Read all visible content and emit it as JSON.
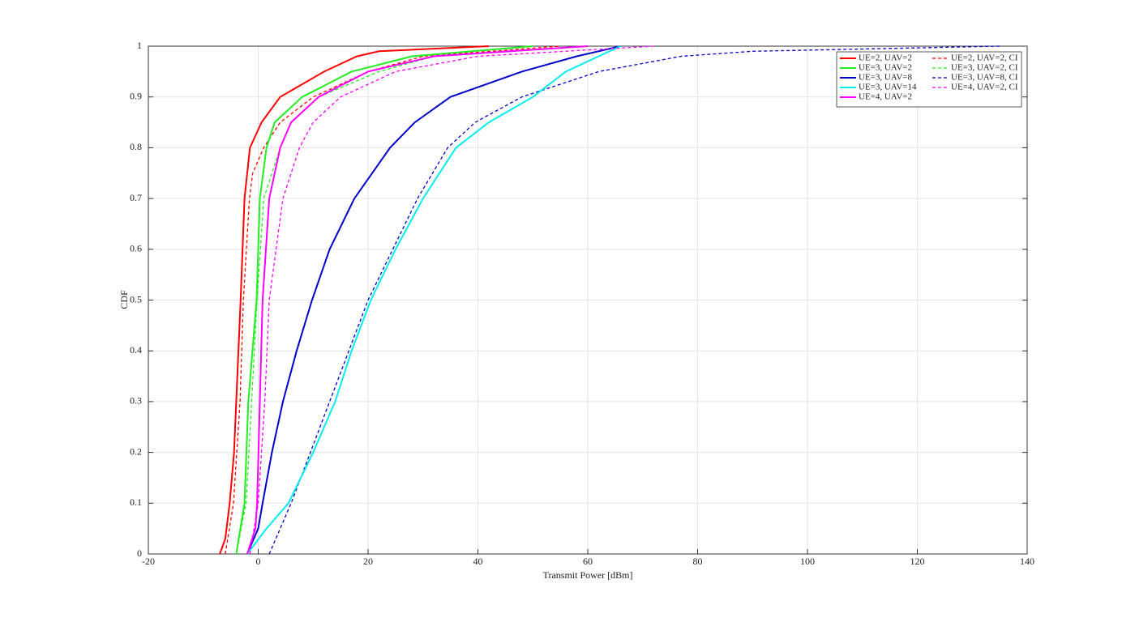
{
  "chart_data": {
    "type": "line",
    "xlabel": "Transmit Power [dBm]",
    "ylabel": "CDF",
    "xlim": [
      -20,
      140
    ],
    "xticks": [
      -20,
      0,
      20,
      40,
      60,
      80,
      100,
      120,
      140
    ],
    "ylim": [
      0,
      1
    ],
    "yticks": [
      0,
      0.1,
      0.2,
      0.3,
      0.4,
      0.5,
      0.6,
      0.7,
      0.8,
      0.9,
      1
    ],
    "grid": true,
    "legend": "top-right",
    "legend_columns": 2,
    "series": [
      {
        "name": "UE=2, UAV=2",
        "color": "#ff0000",
        "style": "solid",
        "x": [
          -7,
          -6,
          -5.2,
          -4.4,
          -4,
          -3.2,
          -2.5,
          -1.5,
          0.6,
          4,
          12,
          18,
          22,
          42
        ],
        "values": [
          0,
          0.03,
          0.1,
          0.2,
          0.3,
          0.5,
          0.7,
          0.8,
          0.85,
          0.9,
          0.95,
          0.98,
          0.99,
          1
        ]
      },
      {
        "name": "UE=2, UAV=2, CI",
        "color": "#ff0000",
        "style": "dashed",
        "x": [
          -6,
          -4.5,
          -3.3,
          -2.7,
          -1.6,
          -1,
          1,
          4,
          10,
          20,
          30,
          55
        ],
        "values": [
          0,
          0.1,
          0.3,
          0.5,
          0.7,
          0.75,
          0.8,
          0.85,
          0.9,
          0.95,
          0.98,
          1
        ]
      },
      {
        "name": "UE=3, UAV=2",
        "color": "#22ee22",
        "style": "solid",
        "x": [
          -4,
          -2.5,
          -1.8,
          -0.3,
          0.3,
          1.5,
          3,
          8,
          17,
          28,
          50
        ],
        "values": [
          0,
          0.1,
          0.3,
          0.5,
          0.7,
          0.8,
          0.85,
          0.9,
          0.95,
          0.98,
          1
        ]
      },
      {
        "name": "UE=3, UAV=2, CI",
        "color": "#22ee22",
        "style": "dashed",
        "x": [
          -4,
          -2.2,
          -1.2,
          -0.2,
          1,
          4,
          6,
          11,
          22,
          32,
          60
        ],
        "values": [
          0,
          0.1,
          0.3,
          0.5,
          0.7,
          0.8,
          0.85,
          0.9,
          0.95,
          0.98,
          1
        ]
      },
      {
        "name": "UE=3, UAV=8",
        "color": "#0000cc",
        "style": "solid",
        "x": [
          -2,
          0,
          0.8,
          2.5,
          4.5,
          7,
          9.8,
          13,
          17.5,
          24,
          28.5,
          35,
          48,
          58,
          66
        ],
        "values": [
          0,
          0.05,
          0.1,
          0.2,
          0.3,
          0.4,
          0.5,
          0.6,
          0.7,
          0.8,
          0.85,
          0.9,
          0.95,
          0.98,
          1
        ]
      },
      {
        "name": "UE=3, UAV=8, CI",
        "color": "#0000cc",
        "style": "dashed",
        "x": [
          2,
          6,
          9.5,
          13,
          16.5,
          20,
          24.5,
          29,
          34.5,
          39.5,
          48,
          62,
          77,
          90,
          135
        ],
        "values": [
          0,
          0.1,
          0.2,
          0.3,
          0.4,
          0.5,
          0.6,
          0.7,
          0.8,
          0.85,
          0.9,
          0.95,
          0.98,
          0.99,
          1
        ]
      },
      {
        "name": "UE=3, UAV=14",
        "color": "#00eeee",
        "style": "solid",
        "x": [
          -2,
          1.5,
          5.5,
          10,
          14,
          17,
          20.5,
          25,
          30,
          36,
          42,
          50,
          56,
          62,
          66
        ],
        "values": [
          0,
          0.05,
          0.1,
          0.2,
          0.3,
          0.4,
          0.5,
          0.6,
          0.7,
          0.8,
          0.85,
          0.9,
          0.95,
          0.98,
          1
        ]
      },
      {
        "name": "UE=4, UAV=2, CI",
        "color": "#ff00ff",
        "style": "dashed",
        "x": [
          -1.5,
          0,
          1.2,
          2,
          4.5,
          7.5,
          10,
          15,
          25,
          40,
          72
        ],
        "values": [
          0,
          0.1,
          0.3,
          0.5,
          0.7,
          0.8,
          0.85,
          0.9,
          0.95,
          0.98,
          1
        ]
      },
      {
        "name": "UE=4, UAV=2",
        "color": "#ff00ff",
        "style": "solid",
        "x": [
          -2,
          -0.5,
          -0.2,
          0.3,
          0.8,
          2,
          4,
          6,
          11,
          20,
          32,
          60
        ],
        "values": [
          0,
          0.05,
          0.1,
          0.3,
          0.5,
          0.7,
          0.8,
          0.85,
          0.9,
          0.95,
          0.98,
          1
        ]
      }
    ]
  }
}
